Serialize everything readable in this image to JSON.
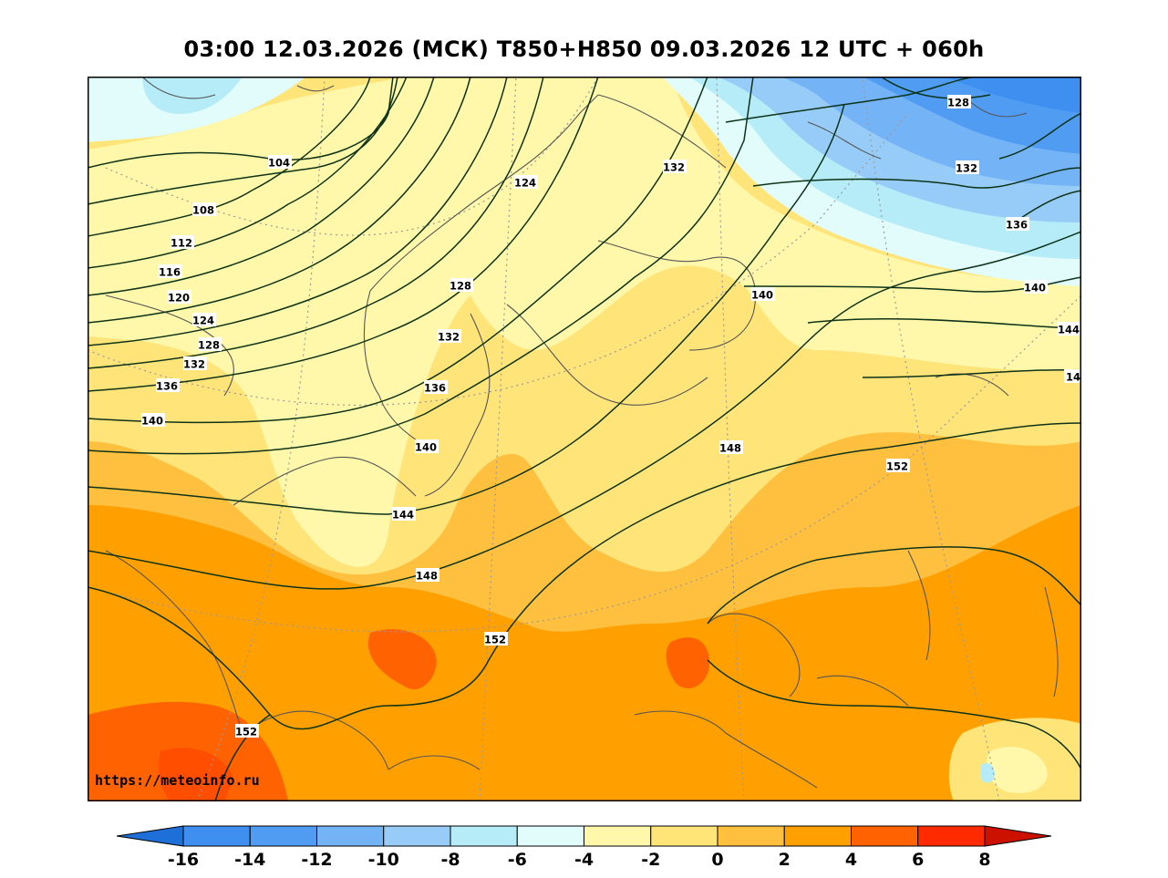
{
  "title": "03:00 12.03.2026 (МСК) T850+H850 09.03.2026 12 UTC + 060h",
  "watermark": "https://meteoinfo.ru",
  "colorbar": {
    "ticks": [
      "-16",
      "-14",
      "-12",
      "-10",
      "-8",
      "-6",
      "-4",
      "-2",
      "0",
      "2",
      "4",
      "6",
      "8"
    ],
    "colors": [
      "#1f6fd8",
      "#3e8ff0",
      "#4f9cf2",
      "#74b3f6",
      "#98ccf8",
      "#b6ecf8",
      "#e2fcfc",
      "#fff8aa",
      "#ffe47a",
      "#ffc040",
      "#ffa000",
      "#ff6200",
      "#ff2a00",
      "#cc1100"
    ]
  },
  "contour_labels": [
    "128",
    "132",
    "136",
    "140",
    "144",
    "14",
    "104",
    "124",
    "132",
    "108",
    "112",
    "116",
    "120",
    "124",
    "128",
    "132",
    "136",
    "140",
    "128",
    "132",
    "136",
    "140",
    "140",
    "148",
    "152",
    "144",
    "148",
    "152",
    "152"
  ]
}
